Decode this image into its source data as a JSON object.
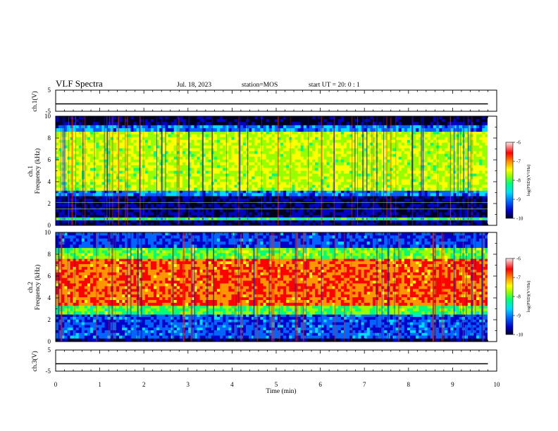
{
  "header": {
    "title": "VLF Spectra",
    "date": "Jul. 18, 2023",
    "station": "station=MOS",
    "start": "start UT =  20: 0 : 1"
  },
  "colors": {
    "spectrogram_scale": [
      "#000020",
      "#0000c8",
      "#0064ff",
      "#00dcff",
      "#00ff78",
      "#96ff00",
      "#ffff00",
      "#ff9600",
      "#ff0000",
      "#d20000"
    ],
    "background": "#ffffff",
    "axes": "#000000"
  },
  "chart_data": [
    {
      "type": "line",
      "name": "ch1-waveform",
      "ylabel": "ch.1(V)",
      "ylim": [
        -5,
        5
      ],
      "yticks": [
        "5",
        "-5"
      ],
      "xlim": [
        0,
        10
      ],
      "x": [
        0,
        9.8
      ],
      "y": [
        -1.5,
        -1.5
      ]
    },
    {
      "type": "heatmap",
      "name": "ch1-spectrogram",
      "ylabel": "ch.1\nFrequency (kHz)",
      "ylim": [
        0,
        10
      ],
      "yticks": [
        "0",
        "2",
        "4",
        "6",
        "8",
        "10"
      ],
      "xlim": [
        0,
        9.8
      ],
      "colorbar": {
        "label": "log(PSD)(V²/Hz)",
        "range": [
          -10,
          -6
        ],
        "ticks": [
          "-6",
          "-7",
          "-8",
          "-9",
          "-10"
        ]
      },
      "bands": [
        {
          "freq_khz": [
            0,
            0.5
          ],
          "log_psd": -9.8
        },
        {
          "freq_khz": [
            0.5,
            0.7
          ],
          "log_psd": -8.2
        },
        {
          "freq_khz": [
            0.7,
            2.7
          ],
          "log_psd": -9.8
        },
        {
          "freq_khz": [
            2.7,
            3.2
          ],
          "log_psd": -9.0
        },
        {
          "freq_khz": [
            3.2,
            8.6
          ],
          "log_psd": -7.6
        },
        {
          "freq_khz": [
            8.6,
            9.2
          ],
          "log_psd": -9.0
        },
        {
          "freq_khz": [
            9.2,
            10
          ],
          "log_psd": -10.0
        }
      ]
    },
    {
      "type": "heatmap",
      "name": "ch2-spectrogram",
      "ylabel": "ch.2\nFrequency (kHz)",
      "ylim": [
        0,
        10
      ],
      "yticks": [
        "0",
        "2",
        "4",
        "6",
        "8",
        "10"
      ],
      "xlim": [
        0,
        9.8
      ],
      "colorbar": {
        "label": "log(PSD)(V²/Hz)",
        "range": [
          -10,
          -6
        ],
        "ticks": [
          "-6",
          "-7",
          "-8",
          "-9",
          "-10"
        ]
      },
      "bands": [
        {
          "freq_khz": [
            0,
            0.3
          ],
          "log_psd": -10.0
        },
        {
          "freq_khz": [
            0.3,
            2.5
          ],
          "log_psd": -9.2
        },
        {
          "freq_khz": [
            2.5,
            3.3
          ],
          "log_psd": -8.0
        },
        {
          "freq_khz": [
            3.3,
            7.6
          ],
          "log_psd": -6.7
        },
        {
          "freq_khz": [
            7.6,
            8.6
          ],
          "log_psd": -7.9
        },
        {
          "freq_khz": [
            8.6,
            10
          ],
          "log_psd": -9.3
        }
      ]
    },
    {
      "type": "line",
      "name": "ch3-waveform",
      "ylabel": "ch.3(V)",
      "ylim": [
        -5,
        5
      ],
      "yticks": [
        "5",
        "-5"
      ],
      "xlim": [
        0,
        10
      ],
      "x": [
        0,
        9.8
      ],
      "y": [
        -1.5,
        -1.5
      ]
    }
  ],
  "xaxis": {
    "label": "Time (min)",
    "ticks": [
      "0",
      "1",
      "2",
      "3",
      "4",
      "5",
      "6",
      "7",
      "8",
      "9",
      "10"
    ]
  }
}
